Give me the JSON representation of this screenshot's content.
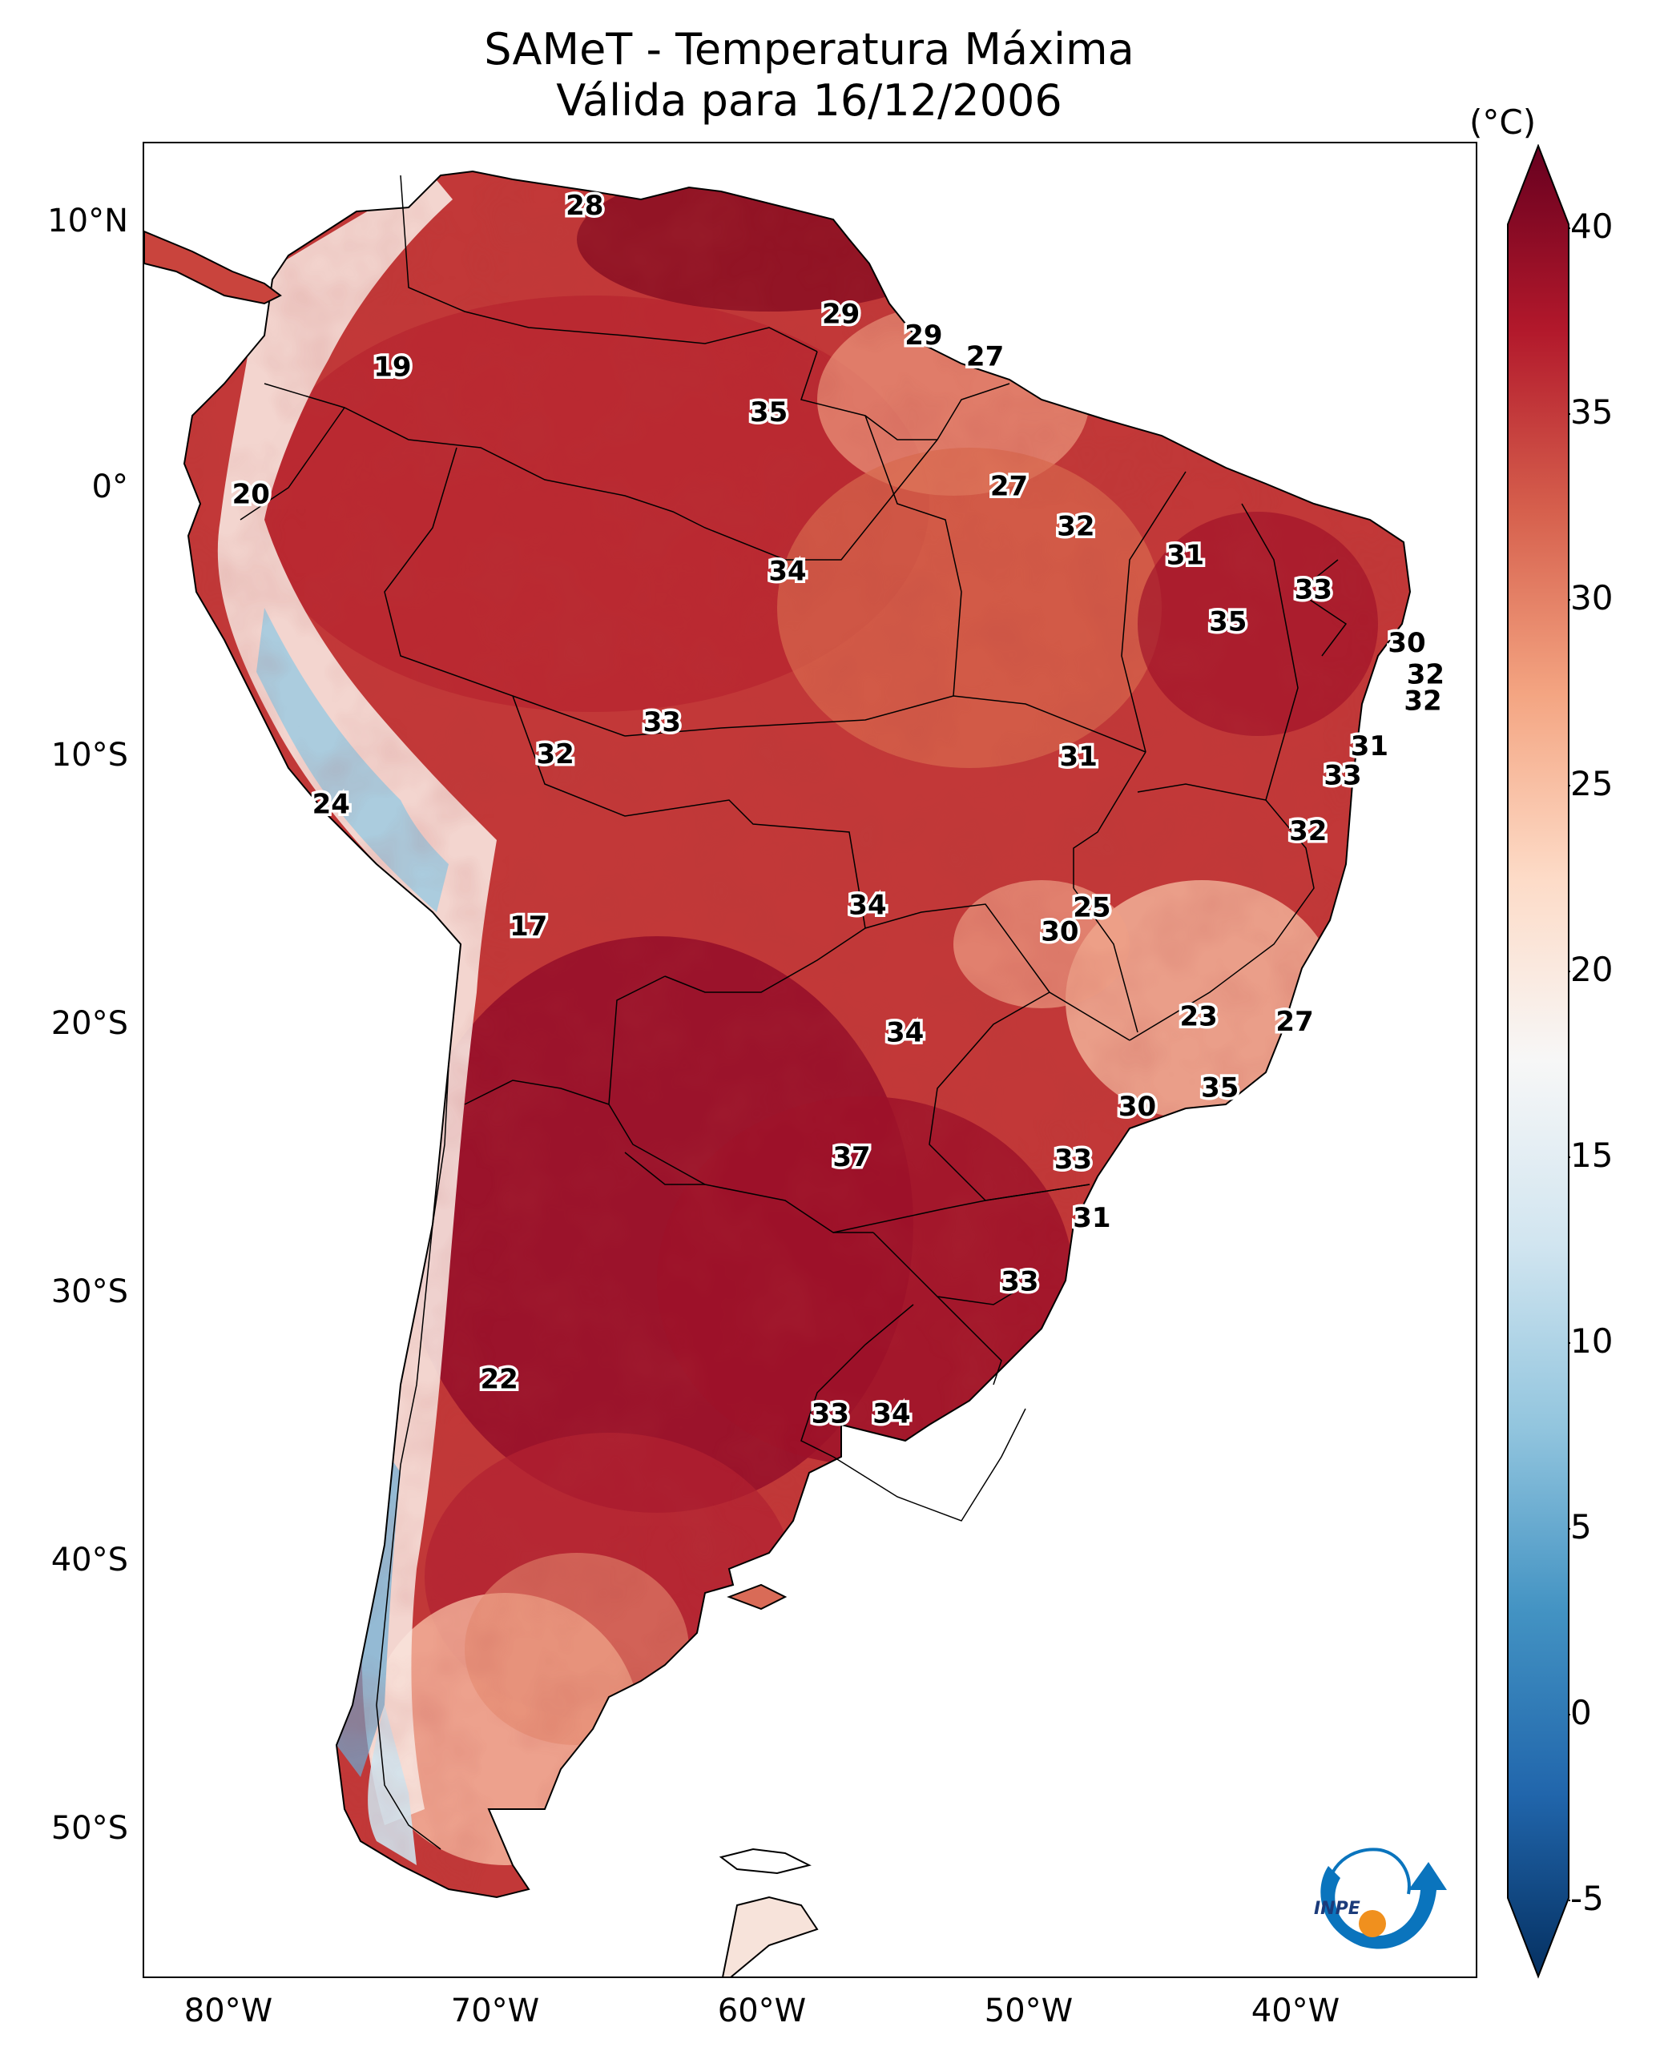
{
  "title": {
    "line1": "SAMeT - Temperatura Máxima",
    "line2": "Válida para 16/12/2006"
  },
  "axes": {
    "lat_ticks": [
      {
        "label": "10°N",
        "value": 10
      },
      {
        "label": "0°",
        "value": 0
      },
      {
        "label": "10°S",
        "value": -10
      },
      {
        "label": "20°S",
        "value": -20
      },
      {
        "label": "30°S",
        "value": -30
      },
      {
        "label": "40°S",
        "value": -40
      },
      {
        "label": "50°S",
        "value": -50
      }
    ],
    "lon_ticks": [
      {
        "label": "80°W",
        "value": -80
      },
      {
        "label": "70°W",
        "value": -70
      },
      {
        "label": "60°W",
        "value": -60
      },
      {
        "label": "50°W",
        "value": -50
      },
      {
        "label": "40°W",
        "value": -40
      }
    ],
    "lon_range": [
      -83,
      -33
    ],
    "lat_range": [
      -56.3,
      13
    ]
  },
  "colorbar": {
    "unit": "(°C)",
    "range": [
      -5,
      40
    ],
    "ticks": [
      "40",
      "35",
      "30",
      "25",
      "20",
      "15",
      "10",
      "5",
      "0",
      "-5"
    ],
    "colors": [
      "#053061",
      "#2166ac",
      "#4393c3",
      "#92c5de",
      "#d1e5f0",
      "#f7f7f7",
      "#fddbc7",
      "#f4a582",
      "#d6604d",
      "#b2182b",
      "#67001f"
    ]
  },
  "logo": {
    "text": "INPE",
    "colors": {
      "arrow": "#0a74bd",
      "dot": "#f0901e"
    }
  },
  "chart_data": {
    "type": "heatmap",
    "title": "SAMeT - Temperatura Máxima Válida para 16/12/2006",
    "variable": "Temperatura Máxima",
    "units": "°C",
    "date": "16/12/2006",
    "annotations": [
      {
        "text": "28",
        "lon": -66.5,
        "lat": 10.6
      },
      {
        "text": "19",
        "lon": -73.7,
        "lat": 4.5
      },
      {
        "text": "29",
        "lon": -56.9,
        "lat": 6.5
      },
      {
        "text": "29",
        "lon": -53.8,
        "lat": 5.7
      },
      {
        "text": "27",
        "lon": -51.5,
        "lat": 4.9
      },
      {
        "text": "35",
        "lon": -59.6,
        "lat": 2.8
      },
      {
        "text": "20",
        "lon": -79.0,
        "lat": -0.3
      },
      {
        "text": "27",
        "lon": -50.6,
        "lat": 0.0
      },
      {
        "text": "32",
        "lon": -48.1,
        "lat": -1.5
      },
      {
        "text": "34",
        "lon": -58.9,
        "lat": -3.2
      },
      {
        "text": "31",
        "lon": -44.0,
        "lat": -2.6
      },
      {
        "text": "33",
        "lon": -39.2,
        "lat": -3.9
      },
      {
        "text": "35",
        "lon": -42.4,
        "lat": -5.1
      },
      {
        "text": "30",
        "lon": -35.7,
        "lat": -5.9
      },
      {
        "text": "32",
        "lon": -35.0,
        "lat": -7.1
      },
      {
        "text": "32",
        "lon": -35.1,
        "lat": -8.1
      },
      {
        "text": "33",
        "lon": -63.6,
        "lat": -8.9
      },
      {
        "text": "32",
        "lon": -67.6,
        "lat": -10.1
      },
      {
        "text": "31",
        "lon": -48.0,
        "lat": -10.2
      },
      {
        "text": "31",
        "lon": -37.1,
        "lat": -9.8
      },
      {
        "text": "33",
        "lon": -38.1,
        "lat": -10.9
      },
      {
        "text": "24",
        "lon": -76.0,
        "lat": -12.0
      },
      {
        "text": "32",
        "lon": -39.4,
        "lat": -13.0
      },
      {
        "text": "34",
        "lon": -55.9,
        "lat": -15.8
      },
      {
        "text": "25",
        "lon": -47.5,
        "lat": -15.9
      },
      {
        "text": "30",
        "lon": -48.7,
        "lat": -16.8
      },
      {
        "text": "17",
        "lon": -68.6,
        "lat": -16.6
      },
      {
        "text": "23",
        "lon": -43.5,
        "lat": -20.0
      },
      {
        "text": "27",
        "lon": -39.9,
        "lat": -20.2
      },
      {
        "text": "34",
        "lon": -54.5,
        "lat": -20.6
      },
      {
        "text": "35",
        "lon": -42.7,
        "lat": -22.7
      },
      {
        "text": "30",
        "lon": -45.8,
        "lat": -23.4
      },
      {
        "text": "37",
        "lon": -56.5,
        "lat": -25.3
      },
      {
        "text": "33",
        "lon": -48.2,
        "lat": -25.4
      },
      {
        "text": "31",
        "lon": -47.5,
        "lat": -27.6
      },
      {
        "text": "33",
        "lon": -50.2,
        "lat": -30.0
      },
      {
        "text": "22",
        "lon": -69.7,
        "lat": -33.7
      },
      {
        "text": "33",
        "lon": -57.3,
        "lat": -35.0
      },
      {
        "text": "34",
        "lon": -55.0,
        "lat": -35.0
      }
    ]
  }
}
